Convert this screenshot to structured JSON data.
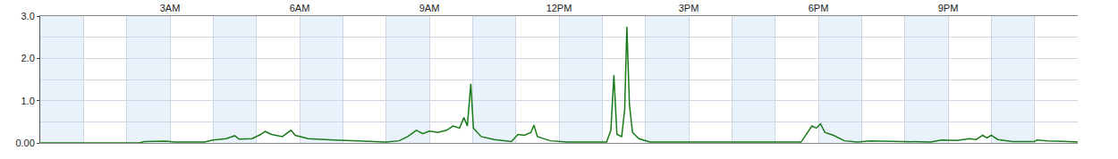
{
  "chart_data": {
    "type": "line",
    "color": "#1a7a1a",
    "grid": true,
    "xlim": [
      0,
      24
    ],
    "xticks": [
      {
        "value": 3,
        "label": "3AM"
      },
      {
        "value": 6,
        "label": "6AM"
      },
      {
        "value": 9,
        "label": "9AM"
      },
      {
        "value": 12,
        "label": "12PM"
      },
      {
        "value": 15,
        "label": "3PM"
      },
      {
        "value": 18,
        "label": "6PM"
      },
      {
        "value": 21,
        "label": "9PM"
      }
    ],
    "ylim": [
      0,
      3
    ],
    "yticks": [
      {
        "value": 0,
        "label": "0.00"
      },
      {
        "value": 1,
        "label": "1.0"
      },
      {
        "value": 2,
        "label": "2.0"
      },
      {
        "value": 3,
        "label": "3.0"
      }
    ],
    "x": [
      0,
      2.3,
      2.4,
      2.6,
      2.9,
      3.1,
      3.8,
      4.0,
      4.3,
      4.5,
      4.6,
      4.9,
      5.1,
      5.2,
      5.35,
      5.6,
      5.8,
      5.9,
      6.2,
      6.8,
      7.5,
      8.0,
      8.3,
      8.5,
      8.7,
      8.85,
      9.0,
      9.2,
      9.4,
      9.55,
      9.7,
      9.8,
      9.88,
      9.96,
      10.02,
      10.2,
      10.5,
      10.9,
      11.05,
      11.2,
      11.35,
      11.42,
      11.5,
      11.8,
      12.2,
      13.1,
      13.2,
      13.27,
      13.34,
      13.45,
      13.52,
      13.57,
      13.63,
      13.7,
      13.85,
      14.1,
      17.6,
      17.75,
      17.85,
      17.95,
      18.05,
      18.15,
      18.35,
      18.6,
      18.9,
      19.2,
      19.8,
      20.2,
      20.6,
      20.85,
      21.2,
      21.5,
      21.65,
      21.8,
      21.9,
      22.0,
      22.15,
      22.5,
      23.0,
      23.05,
      23.3,
      23.8,
      24
    ],
    "values": [
      0,
      0,
      0.03,
      0.04,
      0.04,
      0.02,
      0.02,
      0.07,
      0.1,
      0.17,
      0.09,
      0.1,
      0.2,
      0.27,
      0.2,
      0.15,
      0.3,
      0.18,
      0.1,
      0.07,
      0.05,
      0.02,
      0.05,
      0.15,
      0.3,
      0.22,
      0.28,
      0.25,
      0.3,
      0.4,
      0.35,
      0.6,
      0.4,
      1.4,
      0.35,
      0.15,
      0.08,
      0.03,
      0.2,
      0.18,
      0.25,
      0.42,
      0.15,
      0.05,
      0.02,
      0.02,
      0.3,
      1.6,
      0.2,
      0.15,
      0.8,
      2.75,
      0.9,
      0.25,
      0.1,
      0.02,
      0.02,
      0.25,
      0.4,
      0.35,
      0.45,
      0.25,
      0.18,
      0.05,
      0.02,
      0.05,
      0.04,
      0.02,
      0.02,
      0.07,
      0.06,
      0.1,
      0.08,
      0.18,
      0.12,
      0.18,
      0.08,
      0.03,
      0.03,
      0.07,
      0.05,
      0.03,
      0.02
    ]
  }
}
